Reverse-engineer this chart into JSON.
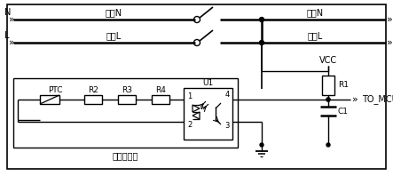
{
  "bg_color": "#ffffff",
  "line_color": "#000000",
  "labels": {
    "N": "N",
    "L": "L",
    "front_N": "前端N",
    "front_L": "前端L",
    "rear_N": "后端N",
    "rear_L": "后端L",
    "VCC": "VCC",
    "R1": "R1",
    "TO_MCU": "TO_MCU",
    "C1": "C1",
    "PTC": "PTC",
    "R2": "R2",
    "R3": "R3",
    "R4": "R4",
    "U1": "U1",
    "smart_breaker": "智能断路器",
    "pin1": "1",
    "pin2": "2",
    "pin3": "3",
    "pin4": "4"
  },
  "figsize": [
    4.43,
    1.98
  ],
  "dpi": 100
}
